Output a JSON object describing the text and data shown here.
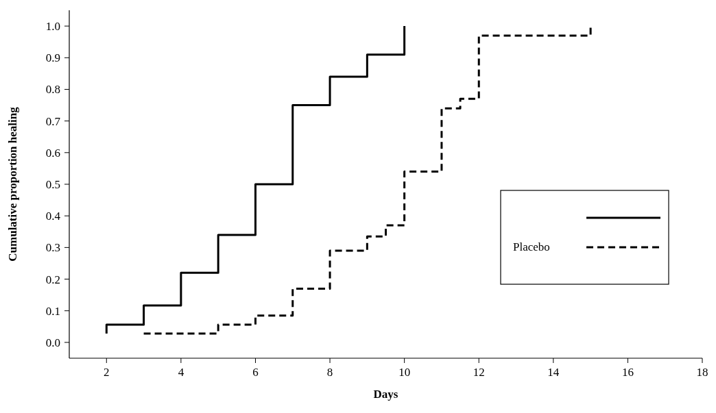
{
  "chart_data": {
    "type": "step",
    "xlabel": "Days",
    "ylabel": "Cumulative proportion healing",
    "xlim": [
      1,
      18
    ],
    "xticks": [
      2,
      4,
      6,
      8,
      10,
      12,
      14,
      16,
      18
    ],
    "ylim": [
      -0.05,
      1.05
    ],
    "yticks": [
      {
        "value": 0,
        "label": "0.0"
      },
      0.1,
      0.2,
      0.3,
      0.4,
      0.5,
      0.6,
      0.7,
      0.8,
      0.9,
      {
        "value": 1,
        "label": "1.0"
      }
    ],
    "grid": false,
    "legend": "right",
    "series": [
      {
        "color": "#000000",
        "line_style": "solid",
        "x": [
          2,
          2,
          3,
          4,
          5,
          6,
          7,
          8,
          9,
          10,
          10
        ],
        "values": [
          0.028,
          0.056,
          0.117,
          0.22,
          0.34,
          0.5,
          0.75,
          0.84,
          0.91,
          0.91,
          1.0
        ]
      },
      {
        "name": "Placebo",
        "color": "#000000",
        "line_style": "dashed",
        "x": [
          3,
          5,
          6,
          7,
          8,
          9,
          9.5,
          10,
          11,
          11.5,
          12,
          15,
          15
        ],
        "values": [
          0.028,
          0.056,
          0.085,
          0.17,
          0.29,
          0.335,
          0.37,
          0.54,
          0.74,
          0.77,
          0.97,
          0.97,
          1.0
        ]
      }
    ]
  }
}
